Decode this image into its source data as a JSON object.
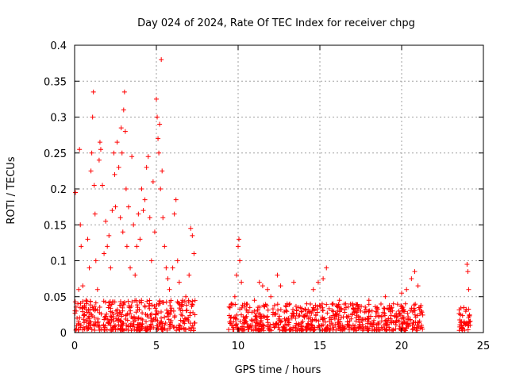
{
  "chart_data": {
    "type": "scatter",
    "title": "Day 024 of 2024, Rate Of TEC Index for receiver chpg",
    "xlabel": "GPS time / hours",
    "ylabel": "ROTI / TECUs",
    "xlim": [
      0,
      25
    ],
    "ylim": [
      0,
      0.4
    ],
    "xticks": [
      0,
      5,
      10,
      15,
      20,
      25
    ],
    "yticks": [
      0,
      0.05,
      0.1,
      0.15,
      0.2,
      0.25,
      0.3,
      0.35,
      0.4
    ],
    "xtick_labels": [
      "0",
      "5",
      "10",
      "15",
      "20",
      "25"
    ],
    "ytick_labels": [
      "0",
      "0.05",
      "0.1",
      "0.15",
      "0.2",
      "0.25",
      "0.3",
      "0.35",
      "0.4"
    ],
    "grid": true,
    "marker": "+",
    "color": "#ff0000",
    "series": [
      {
        "name": "ROTI",
        "points": [
          [
            0.05,
            0.195
          ],
          [
            0.1,
            0.03
          ],
          [
            0.15,
            0.02
          ],
          [
            0.2,
            0.04
          ],
          [
            0.25,
            0.06
          ],
          [
            0.3,
            0.255
          ],
          [
            0.35,
            0.15
          ],
          [
            0.4,
            0.12
          ],
          [
            0.45,
            0.035
          ],
          [
            0.5,
            0.065
          ],
          [
            0.6,
            0.025
          ],
          [
            0.7,
            0.045
          ],
          [
            0.8,
            0.13
          ],
          [
            0.9,
            0.09
          ],
          [
            1.0,
            0.225
          ],
          [
            1.05,
            0.25
          ],
          [
            1.1,
            0.3
          ],
          [
            1.15,
            0.335
          ],
          [
            1.2,
            0.205
          ],
          [
            1.25,
            0.165
          ],
          [
            1.3,
            0.1
          ],
          [
            1.4,
            0.06
          ],
          [
            1.5,
            0.24
          ],
          [
            1.55,
            0.265
          ],
          [
            1.6,
            0.255
          ],
          [
            1.7,
            0.205
          ],
          [
            1.8,
            0.11
          ],
          [
            1.9,
            0.155
          ],
          [
            2.0,
            0.12
          ],
          [
            2.1,
            0.135
          ],
          [
            2.2,
            0.09
          ],
          [
            2.3,
            0.17
          ],
          [
            2.4,
            0.25
          ],
          [
            2.45,
            0.22
          ],
          [
            2.5,
            0.175
          ],
          [
            2.6,
            0.265
          ],
          [
            2.7,
            0.23
          ],
          [
            2.8,
            0.16
          ],
          [
            2.85,
            0.285
          ],
          [
            2.9,
            0.25
          ],
          [
            2.95,
            0.14
          ],
          [
            3.0,
            0.31
          ],
          [
            3.05,
            0.335
          ],
          [
            3.1,
            0.28
          ],
          [
            3.15,
            0.2
          ],
          [
            3.2,
            0.12
          ],
          [
            3.3,
            0.175
          ],
          [
            3.4,
            0.09
          ],
          [
            3.5,
            0.245
          ],
          [
            3.6,
            0.15
          ],
          [
            3.7,
            0.08
          ],
          [
            3.8,
            0.12
          ],
          [
            3.9,
            0.165
          ],
          [
            4.0,
            0.13
          ],
          [
            4.1,
            0.2
          ],
          [
            4.2,
            0.17
          ],
          [
            4.3,
            0.185
          ],
          [
            4.4,
            0.23
          ],
          [
            4.5,
            0.245
          ],
          [
            4.6,
            0.16
          ],
          [
            4.7,
            0.1
          ],
          [
            4.8,
            0.21
          ],
          [
            4.9,
            0.14
          ],
          [
            5.0,
            0.325
          ],
          [
            5.05,
            0.3
          ],
          [
            5.1,
            0.27
          ],
          [
            5.15,
            0.25
          ],
          [
            5.2,
            0.29
          ],
          [
            5.25,
            0.2
          ],
          [
            5.3,
            0.38
          ],
          [
            5.35,
            0.225
          ],
          [
            5.4,
            0.16
          ],
          [
            5.5,
            0.12
          ],
          [
            5.6,
            0.09
          ],
          [
            5.7,
            0.075
          ],
          [
            5.8,
            0.06
          ],
          [
            6.0,
            0.09
          ],
          [
            6.1,
            0.165
          ],
          [
            6.2,
            0.185
          ],
          [
            6.3,
            0.1
          ],
          [
            6.4,
            0.07
          ],
          [
            6.6,
            0.045
          ],
          [
            6.8,
            0.05
          ],
          [
            7.0,
            0.08
          ],
          [
            7.1,
            0.145
          ],
          [
            7.2,
            0.135
          ],
          [
            7.3,
            0.11
          ],
          [
            9.6,
            0.04
          ],
          [
            9.8,
            0.05
          ],
          [
            9.9,
            0.08
          ],
          [
            10.0,
            0.12
          ],
          [
            10.05,
            0.13
          ],
          [
            10.1,
            0.1
          ],
          [
            10.2,
            0.07
          ],
          [
            10.4,
            0.04
          ],
          [
            10.6,
            0.03
          ],
          [
            11.0,
            0.045
          ],
          [
            11.3,
            0.07
          ],
          [
            11.5,
            0.065
          ],
          [
            11.8,
            0.06
          ],
          [
            12.0,
            0.05
          ],
          [
            12.4,
            0.08
          ],
          [
            12.6,
            0.065
          ],
          [
            13.0,
            0.04
          ],
          [
            13.4,
            0.07
          ],
          [
            13.8,
            0.035
          ],
          [
            14.2,
            0.04
          ],
          [
            14.6,
            0.06
          ],
          [
            14.9,
            0.07
          ],
          [
            15.2,
            0.075
          ],
          [
            15.4,
            0.09
          ],
          [
            15.8,
            0.04
          ],
          [
            16.2,
            0.045
          ],
          [
            16.6,
            0.035
          ],
          [
            17.0,
            0.04
          ],
          [
            17.5,
            0.03
          ],
          [
            18.0,
            0.045
          ],
          [
            18.5,
            0.035
          ],
          [
            19.0,
            0.05
          ],
          [
            19.5,
            0.04
          ],
          [
            20.0,
            0.055
          ],
          [
            20.3,
            0.06
          ],
          [
            20.6,
            0.075
          ],
          [
            20.8,
            0.085
          ],
          [
            21.0,
            0.065
          ],
          [
            21.2,
            0.03
          ],
          [
            23.6,
            0.025
          ],
          [
            23.8,
            0.035
          ],
          [
            24.0,
            0.095
          ],
          [
            24.05,
            0.085
          ],
          [
            24.1,
            0.06
          ]
        ],
        "baseline_bands": [
          {
            "x_range": [
              0.0,
              7.4
            ],
            "y_range": [
              0.003,
              0.045
            ]
          },
          {
            "x_range": [
              9.4,
              21.3
            ],
            "y_range": [
              0.003,
              0.04
            ]
          },
          {
            "x_range": [
              23.5,
              24.2
            ],
            "y_range": [
              0.003,
              0.035
            ]
          }
        ]
      }
    ]
  }
}
